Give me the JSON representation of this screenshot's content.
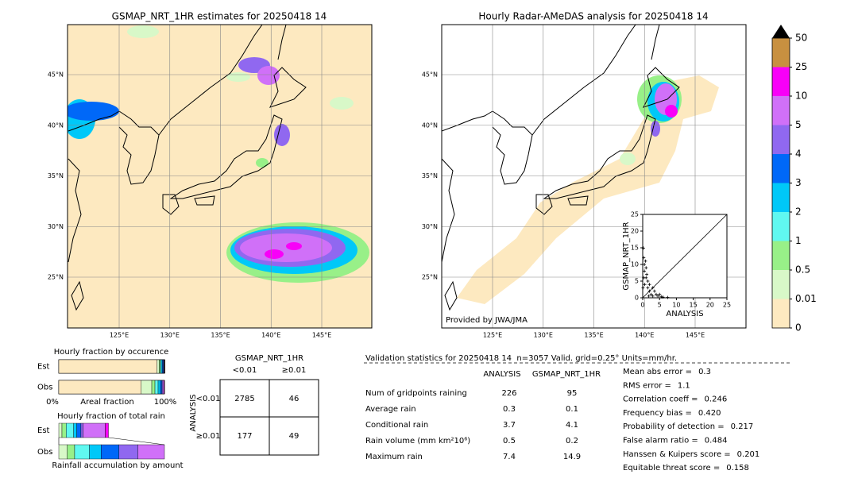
{
  "maps": [
    {
      "title": "GSMAP_NRT_1HR estimates for 20250418 14",
      "lat_ticks": [
        {
          "value": 45,
          "label": "45°N"
        },
        {
          "value": 40,
          "label": "40°N"
        },
        {
          "value": 35,
          "label": "35°N"
        },
        {
          "value": 30,
          "label": "30°N"
        },
        {
          "value": 25,
          "label": "25°N"
        }
      ],
      "lon_ticks": [
        {
          "value": 125,
          "label": "125°E"
        },
        {
          "value": 130,
          "label": "130°E"
        },
        {
          "value": 135,
          "label": "135°E"
        },
        {
          "value": 140,
          "label": "140°E"
        },
        {
          "value": 145,
          "label": "145°E"
        }
      ]
    },
    {
      "title": "Hourly Radar-AMeDAS analysis for 20250418 14",
      "lat_ticks": [
        {
          "value": 45,
          "label": "45°N"
        },
        {
          "value": 40,
          "label": "40°N"
        },
        {
          "value": 35,
          "label": "35°N"
        },
        {
          "value": 30,
          "label": "30°N"
        },
        {
          "value": 25,
          "label": "25°N"
        }
      ],
      "lon_ticks": [
        {
          "value": 125,
          "label": "125°E"
        },
        {
          "value": 130,
          "label": "130°E"
        },
        {
          "value": 135,
          "label": "135°E"
        },
        {
          "value": 140,
          "label": "140°E"
        },
        {
          "value": 145,
          "label": "145°E"
        }
      ],
      "credit": "Provided by JWA/JMA"
    }
  ],
  "scatter": {
    "xlabel": "ANALYSIS",
    "ylabel": "GSMAP_NRT_1HR",
    "lim": [
      0,
      25
    ],
    "ticks": [
      0,
      5,
      10,
      15,
      20,
      25
    ],
    "x": [
      0.2,
      0.3,
      0.5,
      0.5,
      0.8,
      1,
      1,
      1.2,
      1.5,
      1.5,
      2,
      2,
      2.5,
      3,
      3,
      3.5,
      4,
      4.5,
      5,
      5.5,
      6,
      7.4,
      0.3,
      0.6,
      1.8,
      0.1
    ],
    "y": [
      14.9,
      12,
      10,
      8,
      11,
      9,
      6,
      7,
      5,
      3,
      4,
      2,
      1,
      3,
      0.5,
      2,
      1,
      0.5,
      1,
      0.3,
      0.2,
      0.1,
      6,
      4,
      0.5,
      3
    ]
  },
  "colorbar": {
    "levels": [
      0,
      0.01,
      0.5,
      1,
      2,
      3,
      4,
      5,
      10,
      25,
      50
    ],
    "colors": [
      "#fde9c0",
      "#d8f8c8",
      "#98f088",
      "#60f8f0",
      "#00c8f8",
      "#0068f8",
      "#9068f0",
      "#d070f8",
      "#f800f8",
      "#c89040"
    ]
  },
  "occurrence": {
    "title": "Hourly fraction by occurence",
    "est_label": "Est",
    "obs_label": "Obs",
    "est": [
      0.93,
      0.02,
      0.01,
      0.01,
      0.01,
      0.01,
      0.005,
      0.005,
      0.003,
      0.002
    ],
    "obs": [
      0.78,
      0.1,
      0.03,
      0.03,
      0.02,
      0.015,
      0.01,
      0.01,
      0.005,
      0
    ],
    "x_start": "0%",
    "x_label": "Areal fraction",
    "x_end": "100%"
  },
  "total_rain": {
    "title": "Hourly fraction of total rain",
    "est_label": "Est",
    "obs_label": "Obs",
    "est": [
      0,
      0.03,
      0.04,
      0.07,
      0.03,
      0.04,
      0.02,
      0.21,
      0.03,
      0
    ],
    "obs": [
      0,
      0.08,
      0.07,
      0.14,
      0.11,
      0.17,
      0.18,
      0.25,
      0,
      0
    ],
    "footer": "Rainfall accumulation by amount"
  },
  "contingency": {
    "title": "GSMAP_NRT_1HR",
    "col_labels": [
      "<0.01",
      "≥0.01"
    ],
    "row_title": "ANALYSIS",
    "row_labels": [
      "<0.01",
      "≥0.01"
    ],
    "cells": [
      [
        2785,
        46
      ],
      [
        177,
        49
      ]
    ]
  },
  "validation": {
    "title": "Validation statistics for 20250418 14  n=3057 Valid. grid=0.25° Units=mm/hr.",
    "columns": [
      "ANALYSIS",
      "GSMAP_NRT_1HR"
    ],
    "rows": [
      {
        "label": "Num of gridpoints raining",
        "analysis": 226,
        "gsmap": 95
      },
      {
        "label": "Average rain",
        "analysis": 0.3,
        "gsmap": 0.1
      },
      {
        "label": "Conditional rain",
        "analysis": 3.7,
        "gsmap": 4.1
      },
      {
        "label": "Rain volume (mm km²10⁶)",
        "analysis": 0.5,
        "gsmap": 0.2
      },
      {
        "label": "Maximum rain",
        "analysis": 7.4,
        "gsmap": 14.9
      }
    ]
  },
  "scores": [
    {
      "label": "Mean abs error =",
      "value": 0.3
    },
    {
      "label": "RMS error =",
      "value": 1.1
    },
    {
      "label": "Correlation coeff =",
      "value": 0.246
    },
    {
      "label": "Frequency bias =",
      "value": "0.420"
    },
    {
      "label": "Probability of detection =",
      "value": 0.217
    },
    {
      "label": "False alarm ratio =",
      "value": 0.484
    },
    {
      "label": "Hanssen & Kuipers score =",
      "value": 0.201
    },
    {
      "label": "Equitable threat score =",
      "value": 0.158
    }
  ]
}
